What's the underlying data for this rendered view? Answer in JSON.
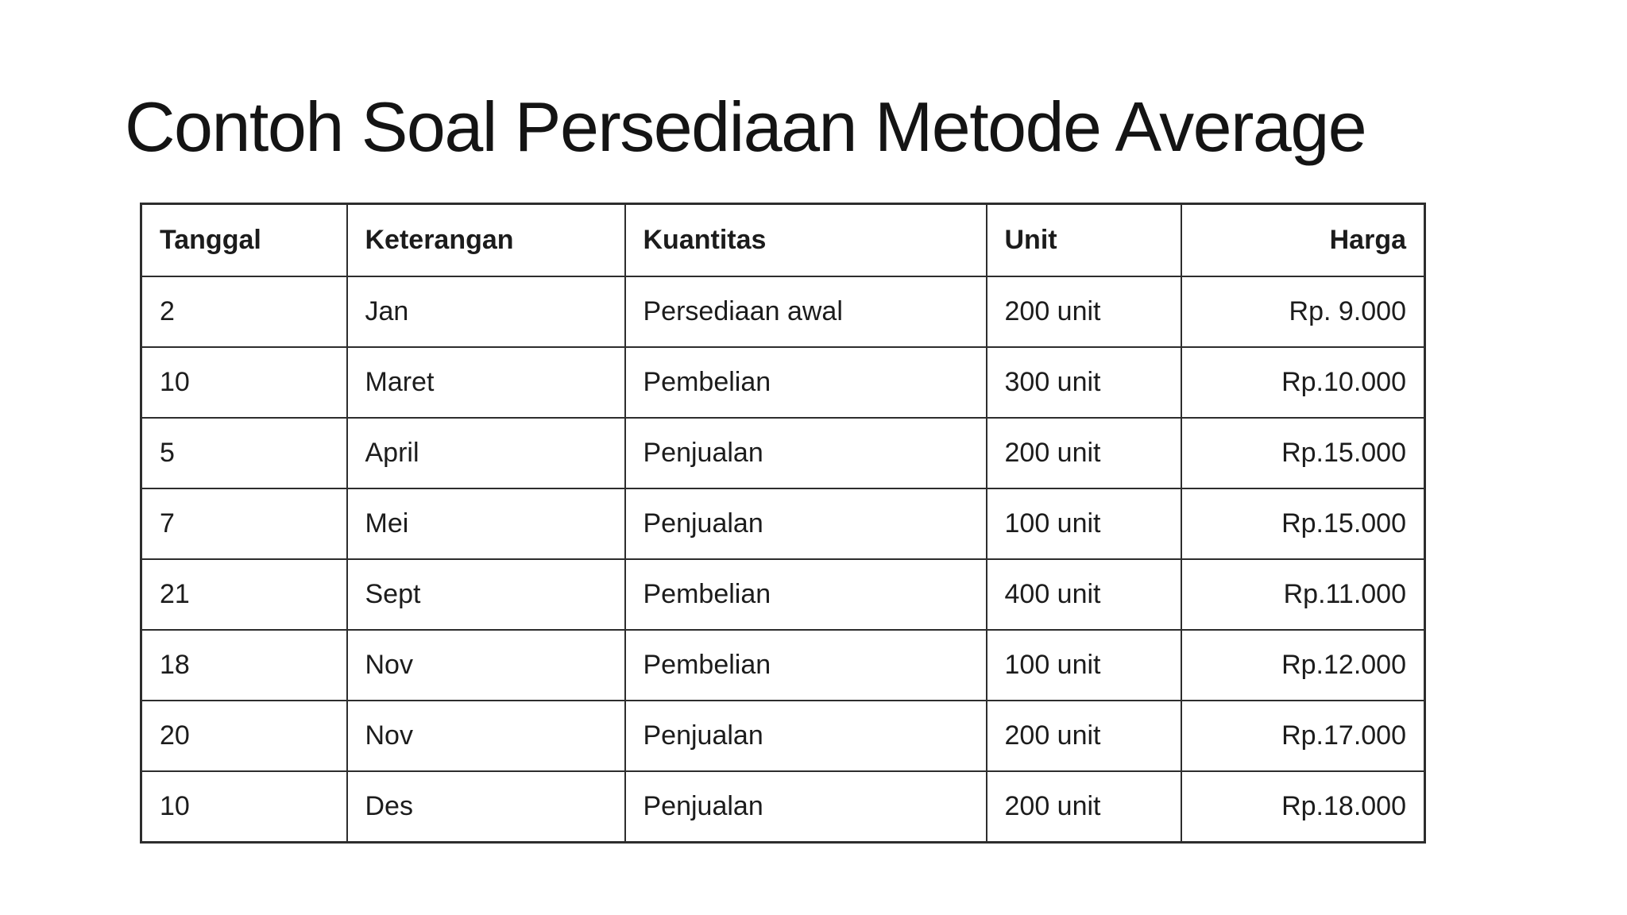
{
  "title": "Contoh Soal Persediaan Metode Average",
  "table": {
    "columns": [
      "Tanggal",
      "Keterangan",
      "Kuantitas",
      "Unit",
      "Harga"
    ],
    "column_keys": [
      "tanggal",
      "keterangan",
      "kuantitas",
      "unit",
      "harga"
    ],
    "rows": [
      [
        "2",
        "Jan",
        "Persediaan awal",
        "200 unit",
        "Rp. 9.000"
      ],
      [
        "10",
        "Maret",
        "Pembelian",
        "300 unit",
        "Rp.10.000"
      ],
      [
        "5",
        "April",
        "Penjualan",
        "200 unit",
        "Rp.15.000"
      ],
      [
        "7",
        "Mei",
        "Penjualan",
        "100 unit",
        "Rp.15.000"
      ],
      [
        "21",
        "Sept",
        "Pembelian",
        "400 unit",
        "Rp.11.000"
      ],
      [
        "18",
        "Nov",
        "Pembelian",
        "100 unit",
        "Rp.12.000"
      ],
      [
        "20",
        "Nov",
        "Penjualan",
        "200 unit",
        "Rp.17.000"
      ],
      [
        "10",
        "Des",
        "Penjualan",
        "200 unit",
        "Rp.18.000"
      ]
    ]
  },
  "colors": {
    "background": "#ffffff",
    "text": "#1c1c1c",
    "border": "#2d2d2d"
  }
}
